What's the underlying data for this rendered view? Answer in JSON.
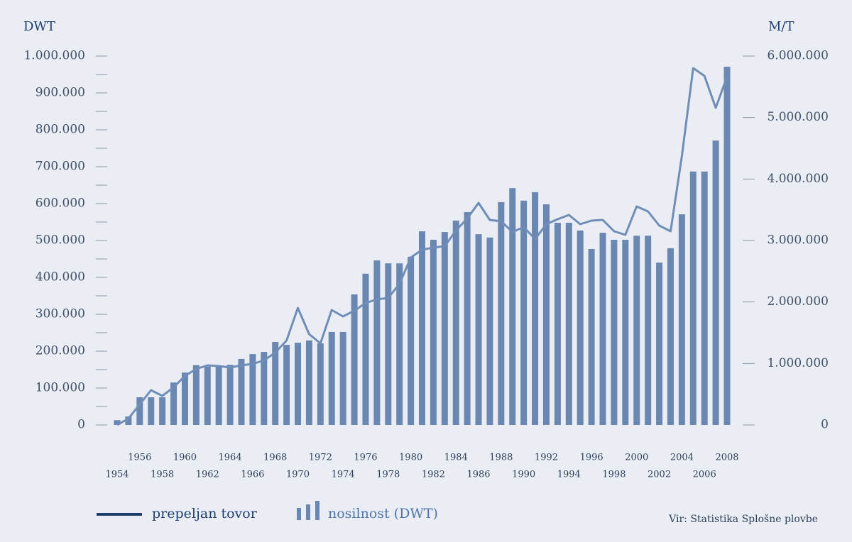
{
  "chart_data": {
    "type": "bar-line",
    "y_label": "DWT",
    "y2_label": "M/T",
    "source": "Vir: Statistika Splošne plovbe",
    "x": [
      1954,
      1955,
      1956,
      1957,
      1958,
      1959,
      1960,
      1961,
      1962,
      1963,
      1964,
      1965,
      1966,
      1967,
      1968,
      1969,
      1970,
      1971,
      1972,
      1973,
      1974,
      1975,
      1976,
      1977,
      1978,
      1979,
      1980,
      1981,
      1982,
      1983,
      1984,
      1985,
      1986,
      1987,
      1988,
      1989,
      1990,
      1991,
      1992,
      1993,
      1994,
      1995,
      1996,
      1997,
      1998,
      1999,
      2000,
      2001,
      2002,
      2003,
      2004,
      2005,
      2006,
      2007,
      2008
    ],
    "xlim": [
      1954,
      2008
    ],
    "xticks": [
      1954,
      1956,
      1958,
      1960,
      1962,
      1964,
      1966,
      1968,
      1970,
      1972,
      1974,
      1976,
      1978,
      1980,
      1982,
      1984,
      1986,
      1988,
      1990,
      1992,
      1994,
      1996,
      1998,
      2000,
      2002,
      2004,
      2006,
      2008
    ],
    "ylim": [
      0,
      1000000
    ],
    "yticks": [
      0,
      {
        "value": 100000,
        "label": "100.000"
      },
      {
        "value": 200000,
        "label": "200.000"
      },
      {
        "value": 300000,
        "label": "300.000"
      },
      {
        "value": 400000,
        "label": "400.000"
      },
      {
        "value": 500000,
        "label": "500.000"
      },
      {
        "value": 600000,
        "label": "600.000"
      },
      {
        "value": 700000,
        "label": "700.000"
      },
      {
        "value": 800000,
        "label": "800.000"
      },
      {
        "value": 900000,
        "label": "900.000"
      },
      {
        "value": 1000000,
        "label": "1.000.000"
      }
    ],
    "y2lim": [
      0,
      6000000
    ],
    "y2ticks": [
      0,
      {
        "value": 1000000,
        "label": "1.000.000"
      },
      {
        "value": 2000000,
        "label": "2.000.000"
      },
      {
        "value": 3000000,
        "label": "3.000.000"
      },
      {
        "value": 4000000,
        "label": "4.000.000"
      },
      {
        "value": 5000000,
        "label": "5.000.000"
      },
      {
        "value": 6000000,
        "label": "6.000.000"
      }
    ],
    "series": [
      {
        "name": "prepeljan tovor",
        "type": "line",
        "axis": "y2",
        "color": "#6f8db6",
        "values": [
          0,
          104000,
          335000,
          565000,
          473000,
          612000,
          796000,
          912000,
          969000,
          958000,
          935000,
          969000,
          992000,
          1050000,
          1177000,
          1373000,
          1904000,
          1477000,
          1327000,
          1869000,
          1765000,
          1858000,
          1985000,
          2042000,
          2065000,
          2296000,
          2723000,
          2850000,
          2885000,
          2908000,
          3162000,
          3358000,
          3612000,
          3335000,
          3312000,
          3138000,
          3219000,
          3023000,
          3265000,
          3346000,
          3415000,
          3265000,
          3323000,
          3335000,
          3150000,
          3092000,
          3554000,
          3473000,
          3242000,
          3150000,
          4373000,
          5804000,
          5677000,
          5158000,
          5665000
        ]
      },
      {
        "name": "nosilnost (DWT)",
        "type": "bar",
        "axis": "y",
        "color": "#6a87b2",
        "values": [
          13000,
          23000,
          75000,
          75000,
          75000,
          115000,
          142000,
          162000,
          158000,
          158000,
          163000,
          179000,
          192000,
          198000,
          225000,
          217000,
          223000,
          229000,
          221000,
          252000,
          252000,
          354000,
          410000,
          446000,
          438000,
          438000,
          456000,
          525000,
          502000,
          523000,
          554000,
          577000,
          517000,
          508000,
          604000,
          642000,
          608000,
          631000,
          598000,
          548000,
          548000,
          527000,
          477000,
          521000,
          502000,
          502000,
          513000,
          513000,
          440000,
          479000,
          571000,
          687000,
          687000,
          771000,
          971000
        ]
      }
    ]
  }
}
